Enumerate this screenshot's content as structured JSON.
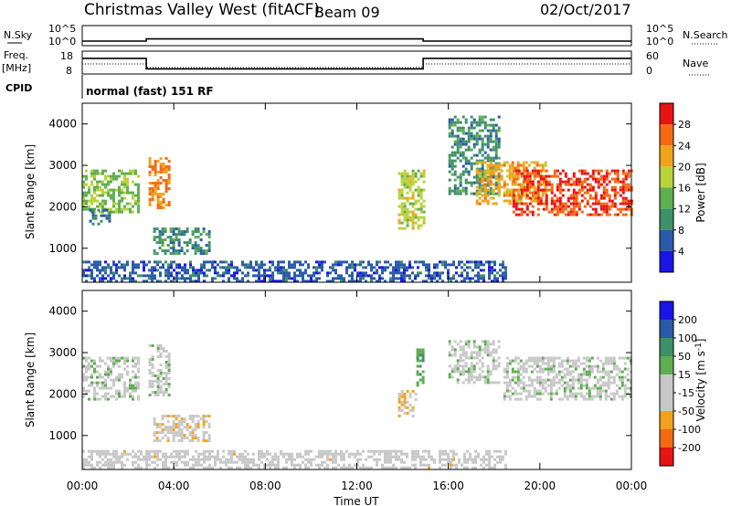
{
  "header": {
    "station": "Christmas Valley West (fitACF)",
    "beam": "Beam 09",
    "date": "02/Oct/2017"
  },
  "strips": {
    "nsky_label": "N.Sky",
    "nsky_ticks": [
      "10^5",
      "10^0"
    ],
    "nsearch_label": "N.Search",
    "nsearch_ticks": [
      "10^5",
      "10^0"
    ],
    "freq_label_1": "Freq.",
    "freq_label_2": "[MHz]",
    "freq_ticks": [
      "18",
      "8"
    ],
    "nave_label": "Nave",
    "nave_ticks": [
      "60",
      "0"
    ],
    "cpid_label": "CPID",
    "cpid_text": "normal (fast) 151 RF"
  },
  "colors": {
    "power_scale": [
      "#1a14e6",
      "#2a5aa8",
      "#3f8f6a",
      "#5fae52",
      "#b9d23a",
      "#f2a31c",
      "#f26a14",
      "#e61414"
    ],
    "velocity_scale": [
      "#e61414",
      "#f26a14",
      "#f2a31c",
      "#c8c8c8",
      "#c8c8c8",
      "#5fae52",
      "#3f8f6a",
      "#2a5aa8",
      "#1a14e6"
    ]
  },
  "chart_data": [
    {
      "type": "heatmap",
      "panel": "power",
      "ylabel": "Slant Range [km]",
      "y_ticks": [
        "1000",
        "2000",
        "3000",
        "4000"
      ],
      "ylim": [
        180,
        4500
      ],
      "xlim": [
        0,
        24
      ],
      "x_ticks": [
        "00:00",
        "04:00",
        "08:00",
        "12:00",
        "16:00",
        "20:00",
        "00:00"
      ],
      "xlabel": "Time UT",
      "colorbar": {
        "label": "Power [dB]",
        "ticks": [
          "4",
          "8",
          "12",
          "16",
          "20",
          "24",
          "28"
        ],
        "range": [
          0,
          32
        ]
      },
      "regions": [
        {
          "t": [
            0.0,
            2.4
          ],
          "r": [
            1850,
            2900
          ],
          "value": 16
        },
        {
          "t": [
            0.3,
            1.2
          ],
          "r": [
            1600,
            1950
          ],
          "value": 8
        },
        {
          "t": [
            2.9,
            3.8
          ],
          "r": [
            1950,
            3200
          ],
          "value": 24
        },
        {
          "t": [
            3.1,
            5.5
          ],
          "r": [
            850,
            1500
          ],
          "value": 10
        },
        {
          "t": [
            13.8,
            14.9
          ],
          "r": [
            1500,
            2900
          ],
          "value": 18
        },
        {
          "t": [
            16.0,
            18.2
          ],
          "r": [
            2300,
            4200
          ],
          "value": 10
        },
        {
          "t": [
            17.2,
            20.2
          ],
          "r": [
            2100,
            3100
          ],
          "value": 22
        },
        {
          "t": [
            18.8,
            24.0
          ],
          "r": [
            1800,
            2900
          ],
          "value": 28
        },
        {
          "t": [
            0.0,
            18.5
          ],
          "r": [
            200,
            700
          ],
          "value": 6
        }
      ]
    },
    {
      "type": "heatmap",
      "panel": "velocity",
      "ylabel": "Slant Range [km]",
      "y_ticks": [
        "1000",
        "2000",
        "3000",
        "4000"
      ],
      "ylim": [
        180,
        4500
      ],
      "xlim": [
        0,
        24
      ],
      "x_ticks": [
        "00:00",
        "04:00",
        "08:00",
        "12:00",
        "16:00",
        "20:00",
        "00:00"
      ],
      "xlabel": "Time UT",
      "colorbar": {
        "label": "Velocity [m s^-1]",
        "ticks": [
          "200",
          "100",
          "50",
          "15",
          "-15",
          "-50",
          "-100",
          "-200"
        ],
        "range": [
          -250,
          250
        ]
      },
      "regions": [
        {
          "t": [
            0.0,
            2.4
          ],
          "r": [
            1850,
            2900
          ],
          "value": 0
        },
        {
          "t": [
            2.9,
            3.8
          ],
          "r": [
            1950,
            3200
          ],
          "value": 0
        },
        {
          "t": [
            3.1,
            5.5
          ],
          "r": [
            850,
            1500
          ],
          "value": -60
        },
        {
          "t": [
            13.8,
            14.6
          ],
          "r": [
            1500,
            2100
          ],
          "value": -70
        },
        {
          "t": [
            14.6,
            14.9
          ],
          "r": [
            2200,
            3100
          ],
          "value": 60
        },
        {
          "t": [
            16.0,
            18.2
          ],
          "r": [
            2300,
            3300
          ],
          "value": 0
        },
        {
          "t": [
            18.4,
            24.0
          ],
          "r": [
            1900,
            2900
          ],
          "value": 0
        },
        {
          "t": [
            0.0,
            18.5
          ],
          "r": [
            200,
            650
          ],
          "value": -40
        }
      ]
    },
    {
      "type": "line",
      "panel": "frequency",
      "ylabel": "Freq. [MHz]",
      "ylim": [
        8,
        18
      ],
      "x": [
        0,
        2.8,
        2.8,
        14.9,
        14.9,
        24
      ],
      "y": [
        15,
        15,
        10,
        10,
        15,
        15
      ]
    },
    {
      "type": "line",
      "panel": "noise",
      "ylabel": "N.Sky",
      "ylim": [
        0,
        5
      ],
      "x": [
        0,
        2.8,
        2.8,
        14.9,
        14.9,
        24
      ],
      "y": [
        1.0,
        1.0,
        1.6,
        1.6,
        1.0,
        1.0
      ]
    }
  ]
}
